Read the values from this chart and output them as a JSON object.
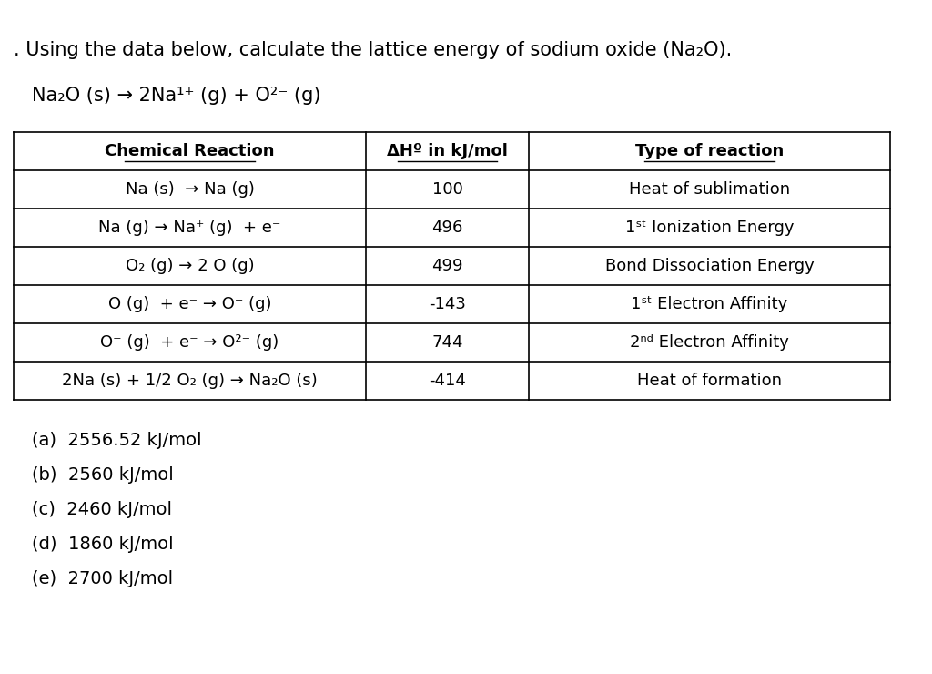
{
  "bg_color": "#ffffff",
  "title_text": ". Using the data below, calculate the lattice energy of sodium oxide (Na₂O).",
  "equation_text": "Na₂O (s) → 2Na¹⁺ (g) + O²⁻ (g)",
  "table_headers": [
    "Chemical Reaction",
    "ΔHº in kJ/mol",
    "Type of reaction"
  ],
  "table_rows": [
    [
      "Na (s)  → Na (g)",
      "100",
      "Heat of sublimation"
    ],
    [
      "Na (g) → Na⁺ (g)  + e⁻",
      "496",
      "1ˢᵗ Ionization Energy"
    ],
    [
      "O₂ (g) → 2 O (g)",
      "499",
      "Bond Dissociation Energy"
    ],
    [
      "O (g)  + e⁻ → O⁻ (g)",
      "-143",
      "1ˢᵗ Electron Affinity"
    ],
    [
      "O⁻ (g)  + e⁻ → O²⁻ (g)",
      "744",
      "2ⁿᵈ Electron Affinity"
    ],
    [
      "2Na (s) + 1/2 O₂ (g) → Na₂O (s)",
      "-414",
      "Heat of formation"
    ]
  ],
  "answers": [
    "(a)  2556.52 kJ/mol",
    "(b)  2560 kJ/mol",
    "(c)  2460 kJ/mol",
    "(d)  1860 kJ/mol",
    "(e)  2700 kJ/mol"
  ],
  "font_size_title": 15,
  "font_size_eq": 15,
  "font_size_table": 13,
  "font_size_answers": 14
}
